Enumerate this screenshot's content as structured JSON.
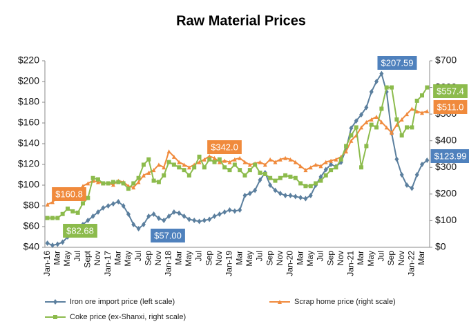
{
  "chart_data": {
    "type": "line",
    "title": "Raw Material Prices",
    "categories": [
      "Jan-16",
      null,
      "Mar",
      null,
      "May",
      null,
      "Jul",
      null,
      "Sept",
      null,
      "Nov",
      null,
      "Jan-17",
      null,
      "Mar",
      null,
      "May",
      null,
      "Jul",
      null,
      "Sep",
      null,
      "Nov",
      null,
      "Jan-18",
      null,
      "Mar",
      null,
      "May",
      null,
      "Jul",
      null,
      "Sep",
      null,
      "Nov",
      null,
      "Jan-19",
      null,
      "Mar",
      null,
      "May",
      null,
      "Jul",
      null,
      "Sep",
      null,
      "Nov",
      null,
      "Jan-20",
      null,
      "Mar",
      null,
      "May",
      null,
      "Jul",
      null,
      "Sep",
      null,
      "Nov",
      null,
      "Jan-21",
      null,
      "Mar",
      null,
      "May",
      null,
      "Jul",
      null,
      "Sep",
      null,
      "Nov",
      null,
      "Jan-22",
      null,
      "Mar",
      null
    ],
    "series": [
      {
        "name": "Iron ore import price (left scale)",
        "color": "#5b7f9e",
        "marker": "diamond",
        "axis": "y",
        "values": [
          44,
          42,
          43,
          45,
          50,
          52,
          58,
          62,
          66,
          70,
          74,
          78,
          80,
          82,
          84,
          80,
          72,
          62,
          58,
          62,
          70,
          72,
          68,
          66,
          70,
          74,
          73,
          70,
          67,
          66,
          65,
          66,
          67,
          70,
          72,
          74,
          76,
          75,
          76,
          90,
          92,
          95,
          105,
          112,
          100,
          95,
          92,
          90,
          90,
          89,
          88,
          87,
          90,
          100,
          108,
          115,
          120,
          118,
          122,
          135,
          155,
          162,
          168,
          175,
          190,
          200,
          207.59,
          190,
          150,
          125,
          110,
          100,
          97,
          110,
          120,
          123.99
        ]
      },
      {
        "name": "Scrap home price (right scale)",
        "color": "#f08a3c",
        "marker": "triangle",
        "axis": "y2",
        "values": [
          160.8,
          170,
          185,
          200,
          190,
          195,
          210,
          230,
          240,
          250,
          245,
          240,
          240,
          235,
          250,
          245,
          230,
          225,
          245,
          270,
          280,
          290,
          310,
          300,
          360,
          340,
          320,
          310,
          300,
          310,
          320,
          330,
          342,
          335,
          320,
          325,
          320,
          330,
          335,
          320,
          310,
          315,
          320,
          310,
          330,
          320,
          330,
          335,
          330,
          320,
          305,
          290,
          300,
          310,
          305,
          320,
          325,
          330,
          340,
          360,
          400,
          420,
          450,
          470,
          480,
          490,
          470,
          450,
          430,
          460,
          480,
          500,
          520,
          510,
          505,
          511
        ]
      },
      {
        "name": "Coke price (ex-Shanxi, right scale)",
        "color": "#8cbb4c",
        "marker": "square",
        "axis": "y2",
        "values": [
          110,
          110,
          110,
          125,
          145,
          135,
          130,
          165,
          185,
          260,
          255,
          240,
          240,
          245,
          245,
          240,
          220,
          240,
          260,
          310,
          330,
          250,
          245,
          270,
          320,
          310,
          300,
          290,
          270,
          300,
          340,
          300,
          330,
          320,
          330,
          300,
          290,
          310,
          290,
          270,
          290,
          310,
          280,
          275,
          260,
          250,
          260,
          270,
          265,
          260,
          240,
          230,
          230,
          240,
          250,
          270,
          290,
          300,
          330,
          380,
          420,
          450,
          300,
          380,
          460,
          450,
          520,
          600,
          600,
          480,
          420,
          450,
          450,
          550,
          570,
          600
        ]
      }
    ],
    "ylim": [
      40,
      220
    ],
    "yticks": [
      {
        "value": 40,
        "label": "$40"
      },
      {
        "value": 60,
        "label": "$60"
      },
      {
        "value": 80,
        "label": "$80"
      },
      {
        "value": 100,
        "label": "$100"
      },
      {
        "value": 120,
        "label": "$120"
      },
      {
        "value": 140,
        "label": "$140"
      },
      {
        "value": 160,
        "label": "$160"
      },
      {
        "value": 180,
        "label": "$180"
      },
      {
        "value": 200,
        "label": "$200"
      },
      {
        "value": 220,
        "label": "$220"
      }
    ],
    "y2lim": [
      0,
      700
    ],
    "y2ticks": [
      {
        "value": 0,
        "label": "$0"
      },
      {
        "value": 100,
        "label": "$100"
      },
      {
        "value": 200,
        "label": "$200"
      },
      {
        "value": 300,
        "label": "$300"
      },
      {
        "value": 400,
        "label": "$400"
      },
      {
        "value": 500,
        "label": "$500"
      },
      {
        "value": 600,
        "label": "$600"
      },
      {
        "value": 700,
        "label": "$700"
      }
    ],
    "annotations": [
      {
        "text": "$160.8",
        "color": "#f08a3c"
      },
      {
        "text": "$82.68",
        "color": "#8cbb4c"
      },
      {
        "text": "$57.00",
        "color": "#4f81bd"
      },
      {
        "text": "$342.0",
        "color": "#f08a3c"
      },
      {
        "text": "$207.59",
        "color": "#4f81bd"
      },
      {
        "text": "$557.4",
        "color": "#8cbb4c"
      },
      {
        "text": "$511.0",
        "color": "#f08a3c"
      },
      {
        "text": "$123.99",
        "color": "#4f81bd"
      }
    ]
  }
}
